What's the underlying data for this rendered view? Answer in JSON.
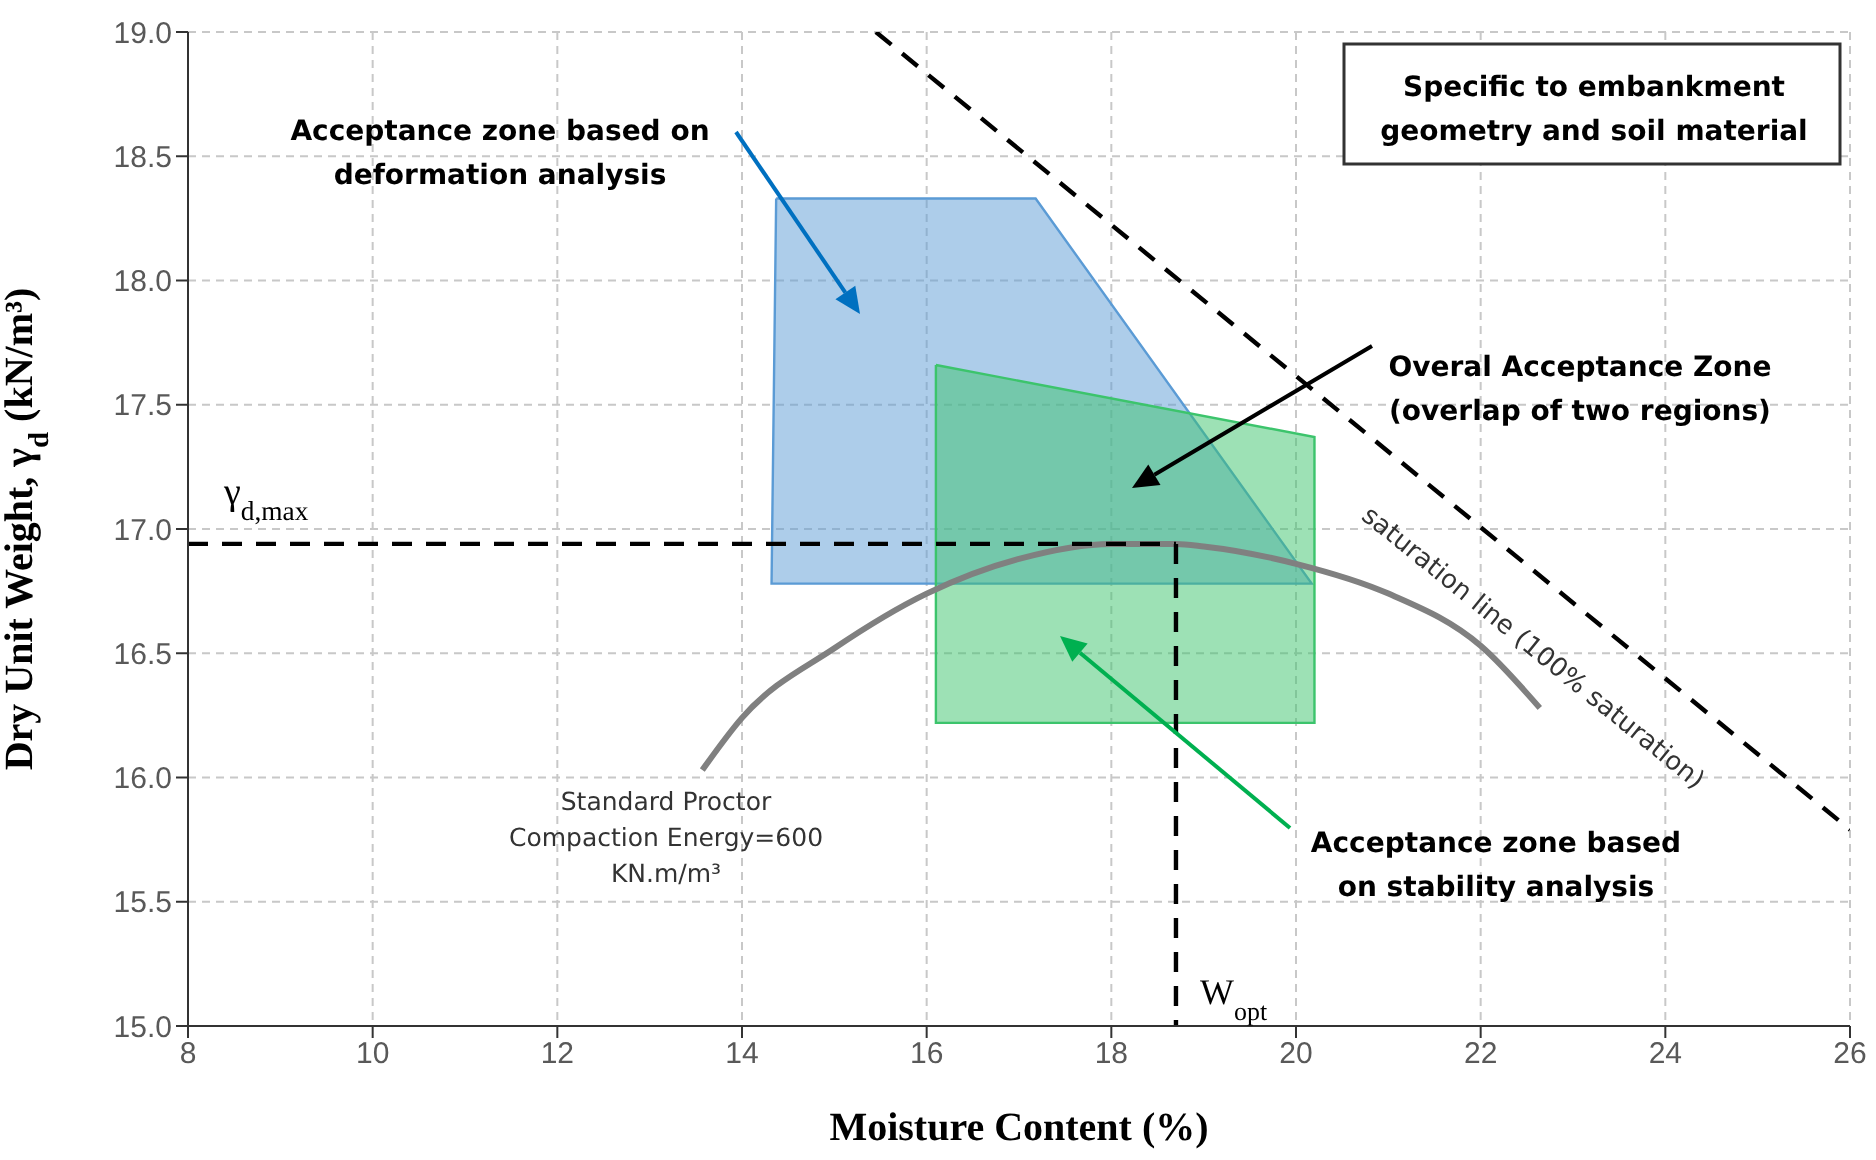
{
  "chart_data": {
    "type": "line",
    "xlabel": "Moisture Content (%)",
    "ylabel": "Dry Unit Weight, γ$_{d}$ (kN/m³)",
    "xlim": [
      8,
      26
    ],
    "xticks": [
      8,
      10,
      12,
      14,
      16,
      18,
      20,
      22,
      24,
      26
    ],
    "ylim": [
      15,
      19
    ],
    "yticks": [
      {
        "value": 15,
        "label": "15.0"
      },
      15.5,
      {
        "value": 16,
        "label": "16.0"
      },
      16.5,
      {
        "value": 17,
        "label": "17.0"
      },
      17.5,
      {
        "value": 18,
        "label": "18.0"
      },
      18.5,
      {
        "value": 19,
        "label": "19.0"
      }
    ],
    "grid": true,
    "marker": "none",
    "legend": false,
    "series": [
      {
        "type": "area",
        "color": "#5b9bd5",
        "x": [
          14.37,
          17.18,
          20.17,
          14.32,
          14.37
        ],
        "values": [
          18.33,
          18.33,
          16.78,
          16.78,
          18.33
        ]
      },
      {
        "type": "area",
        "color": "#3cc46c",
        "x": [
          16.1,
          20.2,
          20.2,
          16.1,
          16.1
        ],
        "values": [
          17.66,
          17.37,
          16.22,
          16.22,
          17.66
        ]
      },
      {
        "color": "#808080",
        "line_style": "solid",
        "x": [
          13.57,
          14,
          15,
          16,
          17,
          18,
          18.7,
          19,
          20,
          21,
          22,
          22.64
        ],
        "values": [
          16.03,
          16.24,
          16.52,
          16.74,
          16.88,
          16.94,
          16.94,
          16.93,
          16.86,
          16.74,
          16.53,
          16.28
        ]
      },
      {
        "color": "#000000",
        "line_style": "dashed",
        "x": [
          15.45,
          26
        ],
        "values": [
          19,
          15.79
        ]
      },
      {
        "color": "#000000",
        "line_style": "dashed",
        "x": [
          8,
          18.7
        ],
        "values": [
          16.94,
          16.94
        ]
      },
      {
        "color": "#000000",
        "line_style": "dashed",
        "x": [
          18.7,
          18.7
        ],
        "values": [
          16.94,
          15
        ]
      }
    ],
    "annotations": [
      "Acceptance zone based on deformation analysis",
      "Overal Acceptance Zone (overlap of two regions)",
      "Acceptance zone based on stability analysis",
      "Specific to embankment geometry and soil material",
      "Standard Proctor Compaction Energy=600 KN.m/m³",
      "saturation line (100% saturation)",
      "γ$_{d,max}$",
      "W$_{opt}$"
    ]
  }
}
